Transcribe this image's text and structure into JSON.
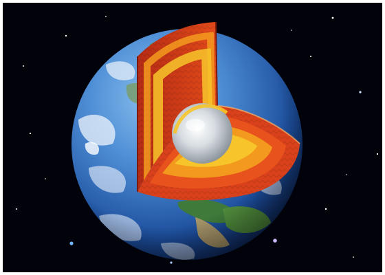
{
  "image": {
    "subject": "earth-cutaway",
    "colors": {
      "space": "#02030a",
      "ocean_light": "#4f8fd6",
      "ocean_dark": "#0c2e6e",
      "cloud": "#eef4fb",
      "land_green": "#3f7a3a",
      "land_tan": "#b39a62",
      "crust": "#c4341a",
      "upper_mantle": "#e8521d",
      "lower_mantle": "#f39a1e",
      "outer_core": "#f7c52a",
      "inner_core": "#d7dde2"
    }
  }
}
